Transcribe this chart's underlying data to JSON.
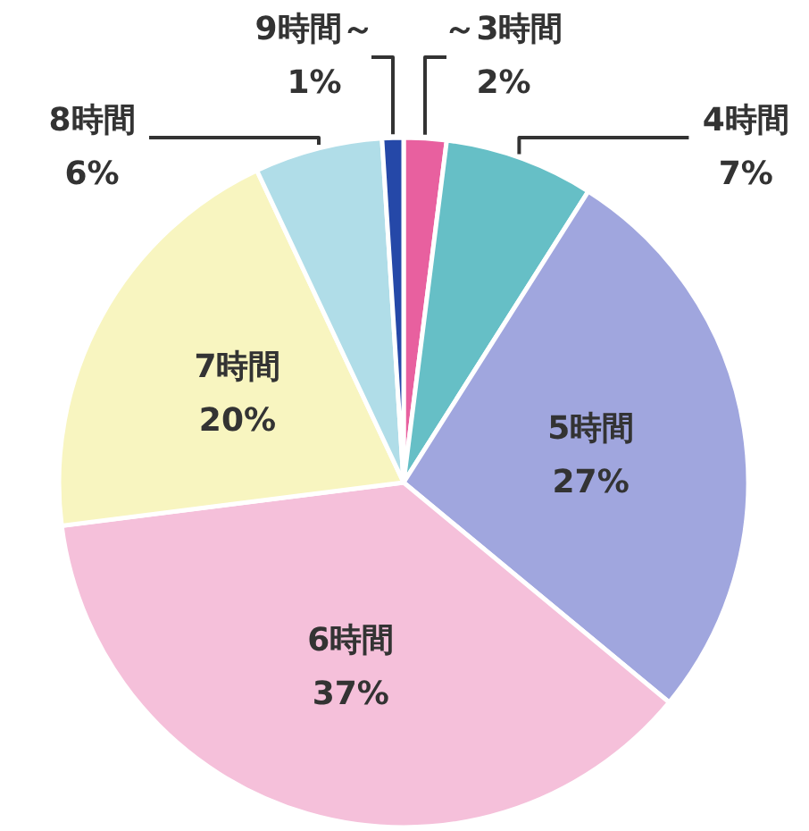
{
  "chart_data": {
    "type": "pie",
    "categories": [
      "～3時間",
      "4時間",
      "5時間",
      "6時間",
      "7時間",
      "8時間",
      "9時間～"
    ],
    "values": [
      2,
      7,
      27,
      37,
      20,
      6,
      1
    ],
    "colors": [
      "#e8609f",
      "#66bfc6",
      "#a0a6de",
      "#f5c0da",
      "#f8f5c0",
      "#b0dde8",
      "#2548a8"
    ],
    "value_labels": [
      "2%",
      "7%",
      "27%",
      "37%",
      "20%",
      "6%",
      "1%"
    ],
    "legend": false
  }
}
